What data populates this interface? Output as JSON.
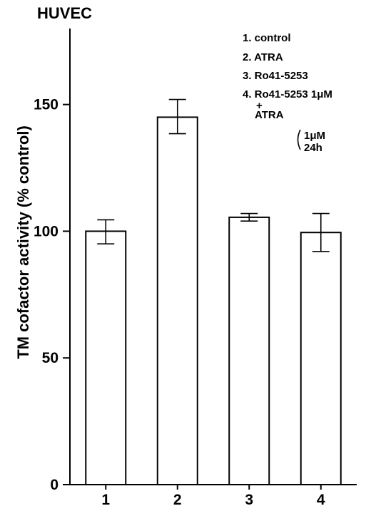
{
  "chart_data": {
    "type": "bar",
    "title": "HUVEC",
    "xlabel": "",
    "ylabel": "TM cofactor activity (% control)",
    "categories": [
      "1",
      "2",
      "3",
      "4"
    ],
    "values": [
      100,
      145,
      105.5,
      99.5
    ],
    "errors": [
      [
        95,
        104.5
      ],
      [
        138.5,
        152
      ],
      [
        104,
        107
      ],
      [
        92,
        107
      ]
    ],
    "ylim": [
      0,
      180
    ],
    "yticks": [
      0,
      50,
      100,
      150
    ],
    "ytick_labels": [
      "0",
      "50",
      "100",
      "150"
    ],
    "grid": false,
    "legend": {
      "placement": "top-right",
      "entries": [
        "1. control",
        "2. ATRA",
        "3. Ro41-5253",
        "4. Ro41-5253 1μM",
        "+",
        "ATRA"
      ],
      "conditions": [
        "1μM",
        "24h"
      ]
    }
  }
}
